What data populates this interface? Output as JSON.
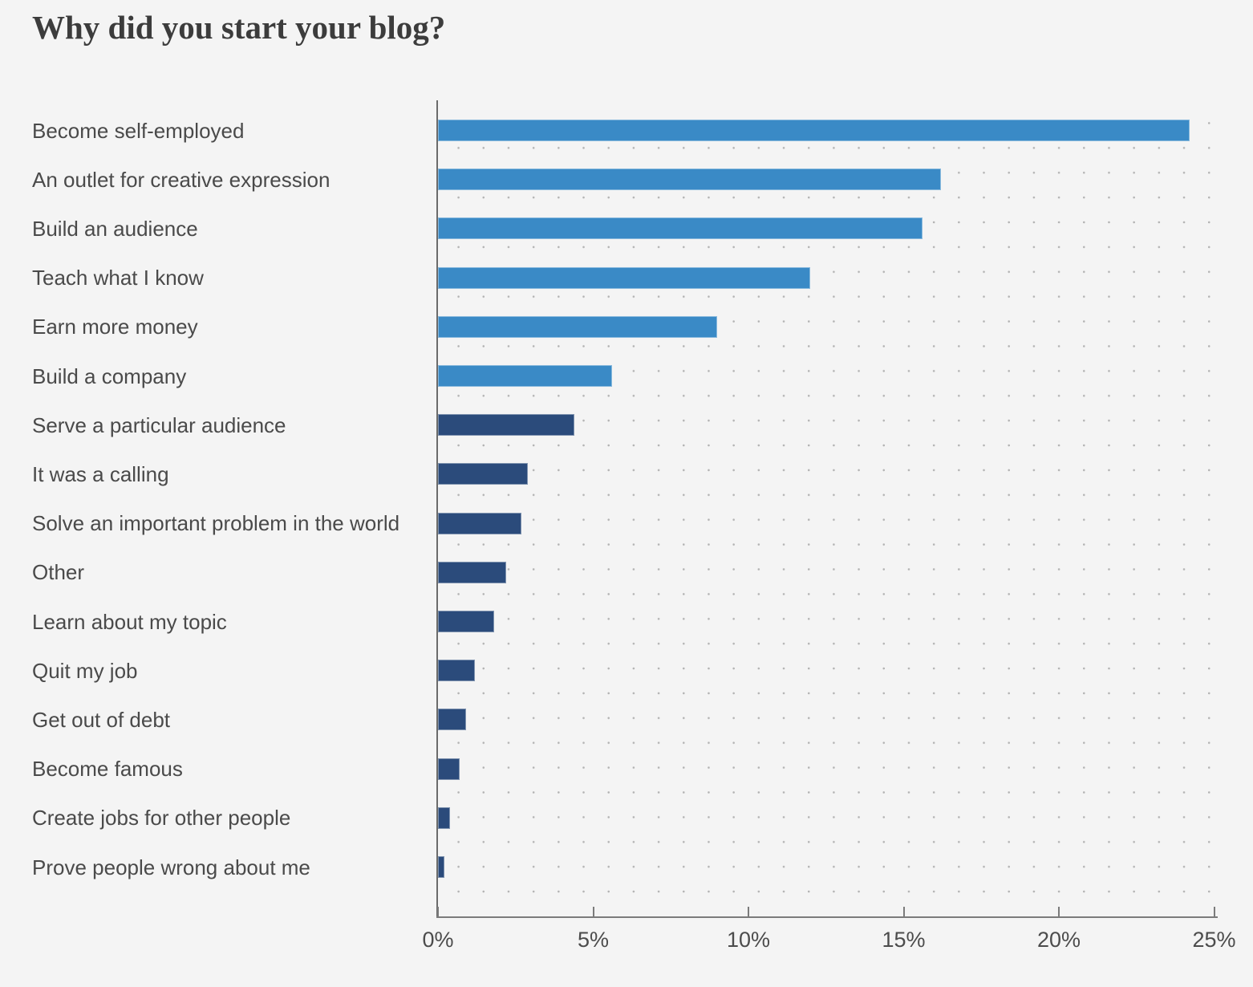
{
  "chart": {
    "title": "Why did you start your blog?"
  },
  "chart_data": {
    "type": "bar",
    "orientation": "horizontal",
    "title": "Why did you start your blog?",
    "categories": [
      "Become self-employed",
      "An outlet for creative expression",
      "Build an audience",
      "Teach what I know",
      "Earn more money",
      "Build a company",
      "Serve a particular audience",
      "It was a calling",
      "Solve an important problem in the world",
      "Other",
      "Learn about my topic",
      "Quit my job",
      "Get out of debt",
      "Become famous",
      "Create jobs for other people",
      "Prove people wrong about me"
    ],
    "values": [
      24.2,
      16.2,
      15.6,
      12.0,
      9.0,
      5.6,
      4.4,
      2.9,
      2.7,
      2.2,
      1.8,
      1.2,
      0.9,
      0.7,
      0.4,
      0.2
    ],
    "unit": "%",
    "bar_shades": [
      "light",
      "light",
      "light",
      "light",
      "light",
      "light",
      "dark",
      "dark",
      "dark",
      "dark",
      "dark",
      "dark",
      "dark",
      "dark",
      "dark",
      "dark"
    ],
    "palette": {
      "light": "#3a8ac6",
      "dark": "#2b4b7b"
    },
    "xlabel": "",
    "ylabel": "",
    "xlim": [
      0,
      25
    ],
    "x_ticks": [
      {
        "label": "0%",
        "value": 0
      },
      {
        "label": "5%",
        "value": 5
      },
      {
        "label": "10%",
        "value": 10
      },
      {
        "label": "15%",
        "value": 15
      },
      {
        "label": "20%",
        "value": 20
      },
      {
        "label": "25%",
        "value": 25
      }
    ],
    "grid": "dotted",
    "legend": "none"
  }
}
